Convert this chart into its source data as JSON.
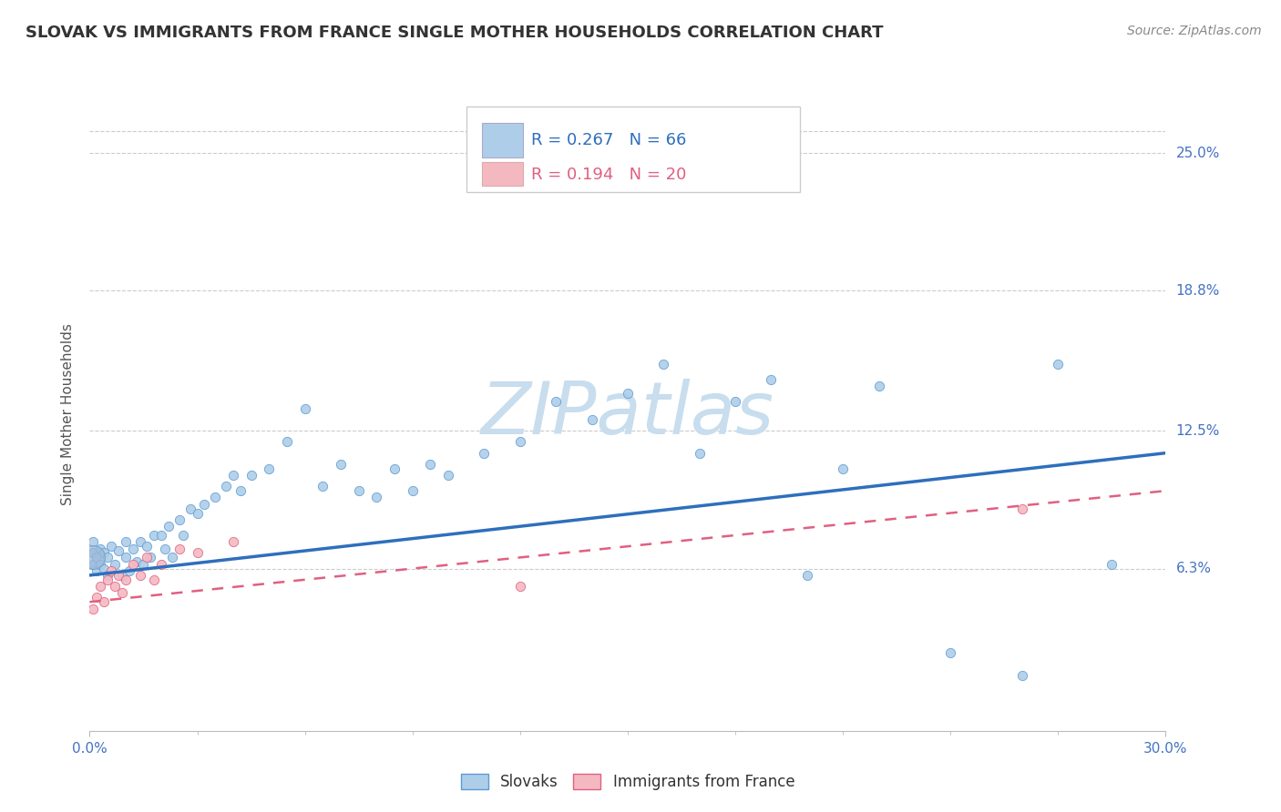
{
  "title": "SLOVAK VS IMMIGRANTS FROM FRANCE SINGLE MOTHER HOUSEHOLDS CORRELATION CHART",
  "source": "Source: ZipAtlas.com",
  "ylabel": "Single Mother Households",
  "xlim": [
    0.0,
    0.3
  ],
  "ylim": [
    -0.01,
    0.275
  ],
  "ytick_labels": [
    "6.3%",
    "12.5%",
    "18.8%",
    "25.0%"
  ],
  "ytick_values": [
    0.063,
    0.125,
    0.188,
    0.25
  ],
  "xtick_labels": [
    "0.0%",
    "30.0%"
  ],
  "xtick_values": [
    0.0,
    0.3
  ],
  "blue_fill": "#aecde8",
  "blue_edge": "#5b9bd5",
  "pink_fill": "#f4b8c1",
  "pink_edge": "#e06080",
  "blue_line_color": "#2e6fbd",
  "pink_line_color": "#e06080",
  "watermark_color": "#d8e8f0",
  "blue_trend": [
    0.0,
    0.3,
    0.06,
    0.115
  ],
  "pink_trend": [
    0.0,
    0.3,
    0.048,
    0.098
  ],
  "sk_x": [
    0.001,
    0.001,
    0.001,
    0.002,
    0.002,
    0.003,
    0.003,
    0.004,
    0.004,
    0.005,
    0.005,
    0.006,
    0.007,
    0.008,
    0.009,
    0.01,
    0.01,
    0.011,
    0.012,
    0.013,
    0.014,
    0.015,
    0.016,
    0.017,
    0.018,
    0.02,
    0.021,
    0.022,
    0.023,
    0.025,
    0.026,
    0.028,
    0.03,
    0.032,
    0.035,
    0.038,
    0.04,
    0.042,
    0.045,
    0.05,
    0.055,
    0.06,
    0.065,
    0.07,
    0.075,
    0.08,
    0.085,
    0.09,
    0.095,
    0.1,
    0.11,
    0.12,
    0.13,
    0.14,
    0.15,
    0.16,
    0.17,
    0.18,
    0.19,
    0.2,
    0.21,
    0.22,
    0.24,
    0.26,
    0.27,
    0.285
  ],
  "sk_y": [
    0.065,
    0.07,
    0.075,
    0.062,
    0.068,
    0.065,
    0.072,
    0.063,
    0.07,
    0.06,
    0.068,
    0.073,
    0.065,
    0.071,
    0.06,
    0.068,
    0.075,
    0.062,
    0.072,
    0.066,
    0.075,
    0.065,
    0.073,
    0.068,
    0.078,
    0.078,
    0.072,
    0.082,
    0.068,
    0.085,
    0.078,
    0.09,
    0.088,
    0.092,
    0.095,
    0.1,
    0.105,
    0.098,
    0.105,
    0.108,
    0.12,
    0.135,
    0.1,
    0.11,
    0.098,
    0.095,
    0.108,
    0.098,
    0.11,
    0.105,
    0.115,
    0.12,
    0.138,
    0.13,
    0.142,
    0.155,
    0.115,
    0.138,
    0.148,
    0.06,
    0.108,
    0.145,
    0.025,
    0.015,
    0.155,
    0.065
  ],
  "sk_large_x": [
    0.001
  ],
  "sk_large_y": [
    0.068
  ],
  "fr_x": [
    0.001,
    0.002,
    0.003,
    0.004,
    0.005,
    0.006,
    0.007,
    0.008,
    0.009,
    0.01,
    0.012,
    0.014,
    0.016,
    0.018,
    0.02,
    0.025,
    0.03,
    0.04,
    0.26,
    0.12
  ],
  "fr_y": [
    0.045,
    0.05,
    0.055,
    0.048,
    0.058,
    0.062,
    0.055,
    0.06,
    0.052,
    0.058,
    0.065,
    0.06,
    0.068,
    0.058,
    0.065,
    0.072,
    0.07,
    0.075,
    0.09,
    0.055
  ],
  "fr_large_x": [
    0.001
  ],
  "fr_large_y": [
    0.068
  ],
  "legend_label1": "R = 0.267   N = 66",
  "legend_label2": "R = 0.194   N = 20"
}
